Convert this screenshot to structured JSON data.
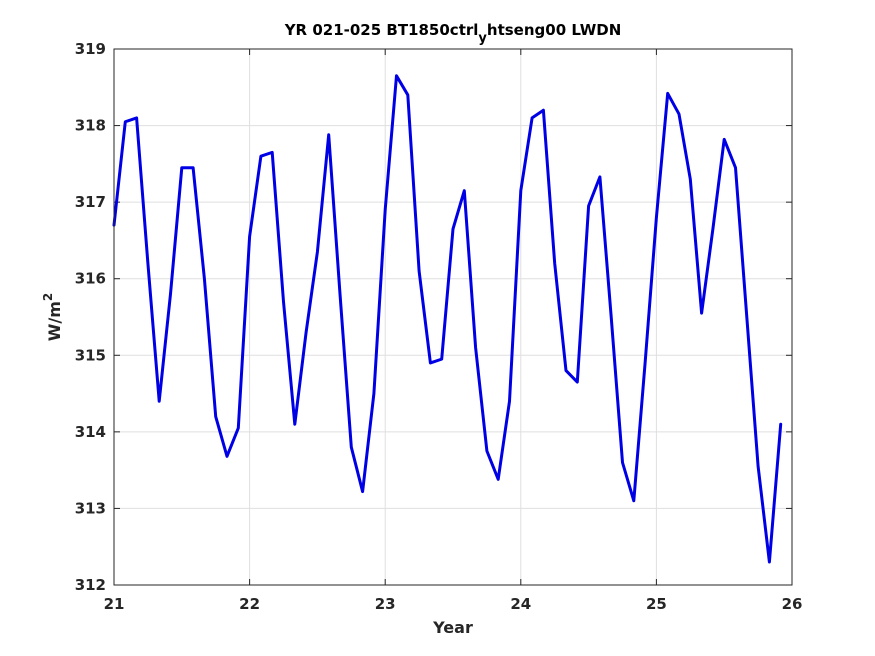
{
  "chart_data": {
    "type": "line",
    "title": {
      "prefix": "YR 021-025 BT1850ctrl",
      "subscript": "y",
      "suffix": "htseng00 LWDN"
    },
    "xlabel": "Year",
    "ylabel": {
      "base": "W/m",
      "superscript": "2"
    },
    "xlim": [
      21,
      26
    ],
    "ylim": [
      312,
      319
    ],
    "xticks": [
      21,
      22,
      23,
      24,
      25,
      26
    ],
    "yticks": [
      312,
      313,
      314,
      315,
      316,
      317,
      318,
      319
    ],
    "xtick_labels": [
      "21",
      "22",
      "23",
      "24",
      "25",
      "26"
    ],
    "ytick_labels": [
      "312",
      "313",
      "314",
      "315",
      "316",
      "317",
      "318",
      "319"
    ],
    "grid": true,
    "line_color": "#0000e6",
    "series": [
      {
        "x": [
          21.0,
          21.0833,
          21.1667,
          21.25,
          21.3333,
          21.4167,
          21.5,
          21.5833,
          21.6667,
          21.75,
          21.8333,
          21.9167,
          22.0,
          22.0833,
          22.1667,
          22.25,
          22.3333,
          22.4167,
          22.5,
          22.5833,
          22.6667,
          22.75,
          22.8333,
          22.9167,
          23.0,
          23.0833,
          23.1667,
          23.25,
          23.3333,
          23.4167,
          23.5,
          23.5833,
          23.6667,
          23.75,
          23.8333,
          23.9167,
          24.0,
          24.0833,
          24.1667,
          24.25,
          24.3333,
          24.4167,
          24.5,
          24.5833,
          24.6667,
          24.75,
          24.8333,
          24.9167,
          25.0,
          25.0833,
          25.1667,
          25.25,
          25.3333,
          25.4167,
          25.5,
          25.5833,
          25.6667,
          25.75,
          25.8333,
          25.9167
        ],
        "y": [
          316.7,
          318.05,
          318.1,
          316.2,
          314.4,
          315.8,
          317.45,
          317.45,
          316.0,
          314.2,
          313.68,
          314.05,
          316.55,
          317.6,
          317.65,
          315.7,
          314.1,
          315.3,
          316.35,
          317.88,
          315.8,
          313.8,
          313.22,
          314.5,
          316.9,
          318.65,
          318.4,
          316.1,
          314.9,
          314.95,
          316.65,
          317.15,
          315.1,
          313.75,
          313.38,
          314.4,
          317.15,
          318.1,
          318.2,
          316.2,
          314.8,
          314.65,
          316.95,
          317.33,
          315.5,
          313.6,
          313.1,
          314.9,
          316.8,
          318.42,
          318.15,
          317.3,
          315.55,
          316.65,
          317.82,
          317.45,
          315.5,
          313.55,
          312.3,
          314.1
        ]
      }
    ]
  }
}
